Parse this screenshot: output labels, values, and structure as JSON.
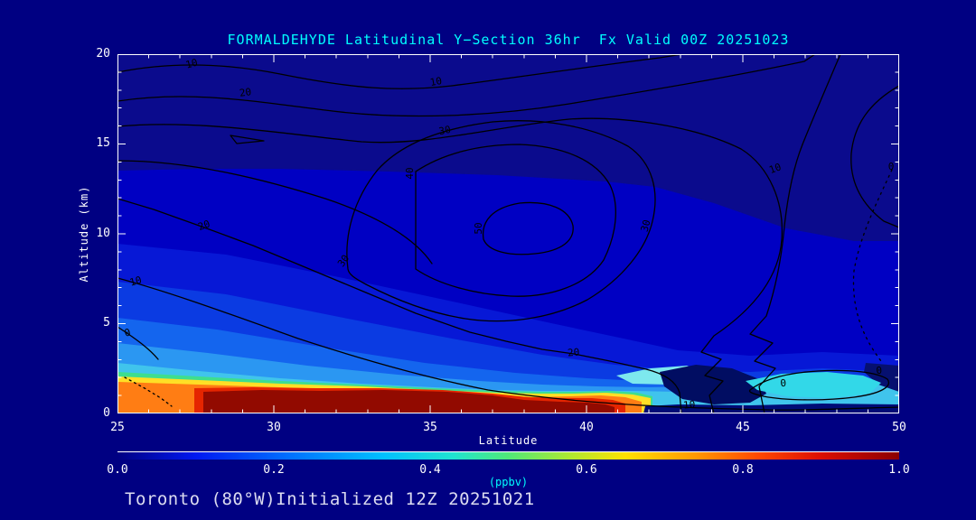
{
  "title": "FORMALDEHYDE Latitudinal Y−Section 36hr  Fx Valid 00Z 20251023",
  "footer": "Toronto (80°W)Initialized 12Z 20251021",
  "colors": {
    "background": "#000082",
    "title_text": "#00ffff",
    "axis_text": "#ffffff",
    "footer_text": "#dcdcf0",
    "contour_line": "#000000",
    "plot_base_fill": "#0000c3",
    "upper_troposphere_fill": "#0b0b8d",
    "plume_core_fill": "#920a00"
  },
  "chart_data": {
    "type": "heatmap",
    "subtype": "filled-contour latitude-height cross-section with black line contours",
    "title": "FORMALDEHYDE Latitudinal Y−Section 36hr  Fx Valid 00Z 20251023",
    "xlabel": "Latitude",
    "ylabel": "Altitude (km)",
    "xlim": [
      25,
      50
    ],
    "ylim": [
      0,
      20
    ],
    "x_tick_labels": [
      "25",
      "30",
      "35",
      "40",
      "45",
      "50"
    ],
    "y_tick_labels_bottom_up": [
      "0",
      "5",
      "10",
      "15",
      "20"
    ],
    "x_minor_tick_interval": 1,
    "y_minor_tick_interval": 1,
    "grid": false,
    "legend_position": "none",
    "colorbar": {
      "label": "(ppbv)",
      "min": 0.0,
      "max": 1.0,
      "tick_labels": [
        "0.0",
        "0.2",
        "0.4",
        "0.6",
        "0.8",
        "1.0"
      ],
      "gradient_stops": [
        {
          "pos": 0.0,
          "color": "#000082"
        },
        {
          "pos": 0.1,
          "color": "#0018f0"
        },
        {
          "pos": 0.22,
          "color": "#0070ff"
        },
        {
          "pos": 0.34,
          "color": "#00c0ff"
        },
        {
          "pos": 0.43,
          "color": "#20e4d0"
        },
        {
          "pos": 0.5,
          "color": "#50e878"
        },
        {
          "pos": 0.58,
          "color": "#b0e830"
        },
        {
          "pos": 0.65,
          "color": "#ffe000"
        },
        {
          "pos": 0.74,
          "color": "#ff9800"
        },
        {
          "pos": 0.82,
          "color": "#ff4800"
        },
        {
          "pos": 0.9,
          "color": "#dc0e00"
        },
        {
          "pos": 1.0,
          "color": "#8b0000"
        }
      ]
    },
    "contour_line_levels": [
      0,
      10,
      20,
      30,
      40,
      50
    ],
    "contour_line_style": {
      "zero_level": "dotted",
      "positive_levels": "solid"
    },
    "contour_labels": [
      {
        "value": 10,
        "lat": 27.4,
        "alt_km": 19.3
      },
      {
        "value": 10,
        "lat": 35.2,
        "alt_km": 18.3
      },
      {
        "value": 20,
        "lat": 29.1,
        "alt_km": 17.7
      },
      {
        "value": 30,
        "lat": 35.5,
        "alt_km": 15.6
      },
      {
        "value": 40,
        "lat": 34.4,
        "alt_km": 13.5
      },
      {
        "value": 50,
        "lat": 36.6,
        "alt_km": 10.4
      },
      {
        "value": 30,
        "lat": 41.9,
        "alt_km": 10.5
      },
      {
        "value": 30,
        "lat": 32.3,
        "alt_km": 8.5
      },
      {
        "value": 20,
        "lat": 27.8,
        "alt_km": 10.4
      },
      {
        "value": 10,
        "lat": 25.6,
        "alt_km": 7.3
      },
      {
        "value": 0,
        "lat": 25.3,
        "alt_km": 4.4
      },
      {
        "value": 10,
        "lat": 46.0,
        "alt_km": 13.6
      },
      {
        "value": 0,
        "lat": 49.8,
        "alt_km": 13.7
      },
      {
        "value": 20,
        "lat": 39.6,
        "alt_km": 3.3
      },
      {
        "value": 10,
        "lat": 43.3,
        "alt_km": 0.4
      },
      {
        "value": 0,
        "lat": 46.3,
        "alt_km": 1.6
      },
      {
        "value": 0,
        "lat": 49.4,
        "alt_km": 2.3
      }
    ],
    "filled_features": [
      {
        "region": "surface plume core (dark red)",
        "lat_range": [
          27,
          41
        ],
        "alt_range_km": [
          0,
          1.4
        ],
        "value_ppbv": "0.85-1.0"
      },
      {
        "region": "surface left edge (orange/yellow)",
        "lat_range": [
          25,
          27
        ],
        "alt_range_km": [
          0,
          1.2
        ],
        "value_ppbv": "0.6-0.8"
      },
      {
        "region": "transition band above plume (yellow-cyan)",
        "lat_range": [
          25,
          41
        ],
        "alt_range_km": [
          1.4,
          3.2
        ],
        "value_ppbv": "0.3-0.6"
      },
      {
        "region": "lower free troposphere (light blue)",
        "lat_range": [
          25,
          41
        ],
        "alt_range_km": [
          3,
          7
        ],
        "value_ppbv": "0.15-0.3"
      },
      {
        "region": "mid troposphere (medium blue)",
        "lat_range": [
          25,
          50
        ],
        "alt_range_km": [
          7,
          13
        ],
        "value_ppbv": "0.05-0.15"
      },
      {
        "region": "upper troposphere (dark blue)",
        "lat_range": [
          25,
          50
        ],
        "alt_range_km": [
          13,
          20
        ],
        "value_ppbv": "0.0-0.05"
      },
      {
        "region": "clean low-level pocket (dark navy)",
        "lat_range": [
          41.5,
          45.5
        ],
        "alt_range_km": [
          0,
          2.5
        ],
        "value_ppbv": "0.0-0.1"
      },
      {
        "region": "cyan low-level pocket",
        "lat_range": [
          45.5,
          49
        ],
        "alt_range_km": [
          0.3,
          2.2
        ],
        "value_ppbv": "0.3-0.45"
      }
    ]
  }
}
